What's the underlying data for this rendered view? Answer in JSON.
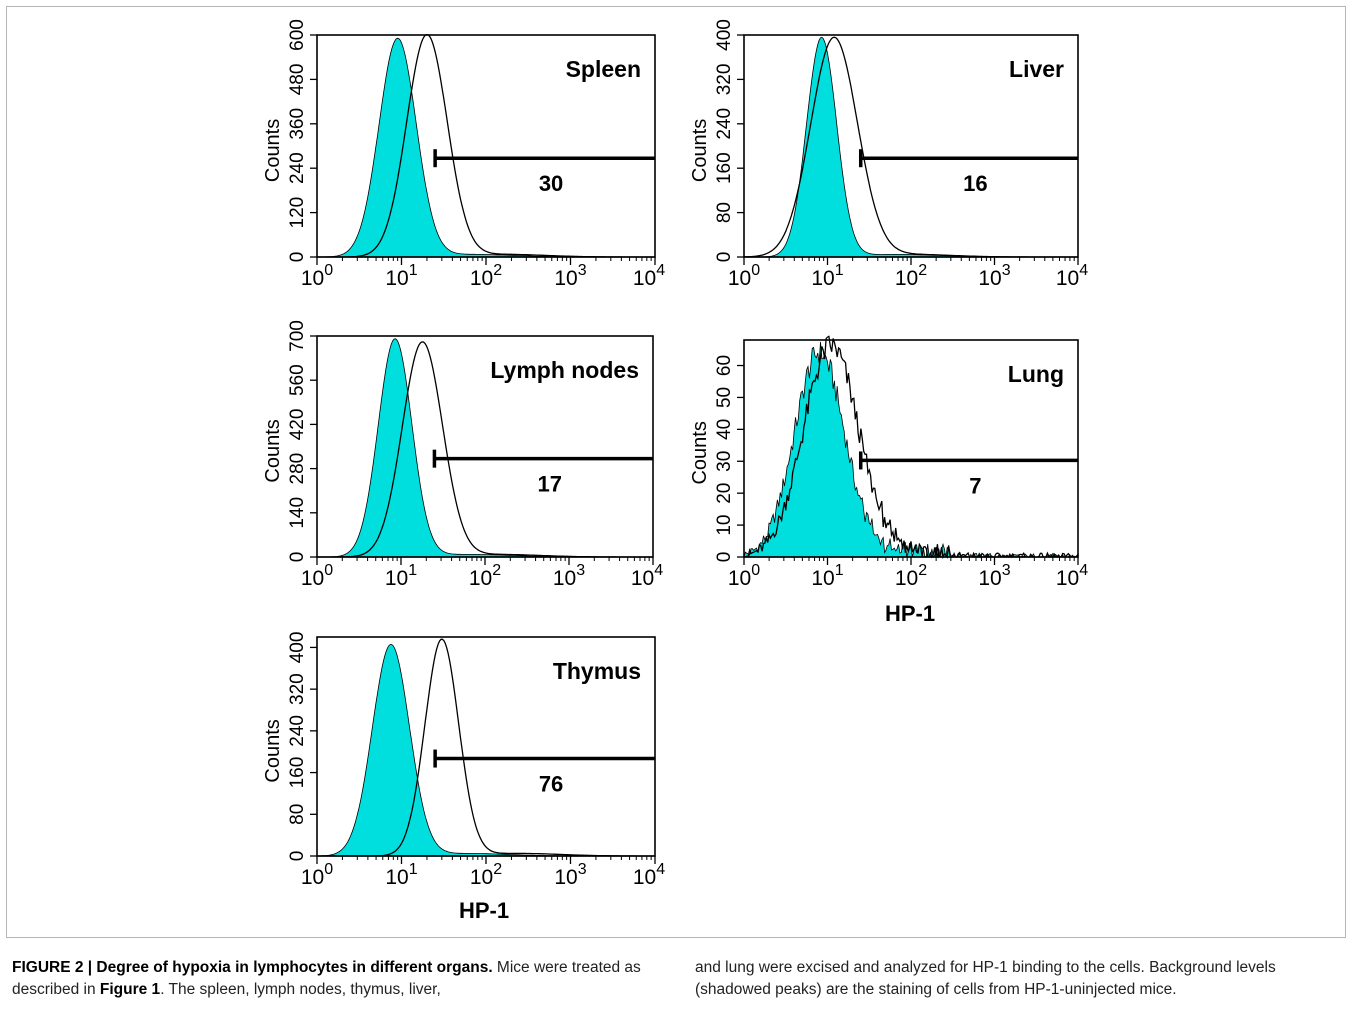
{
  "figure": {
    "shared_xlabel": "HP-1",
    "x_tick_labels": [
      {
        "base": "10",
        "exp": "0"
      },
      {
        "base": "10",
        "exp": "1"
      },
      {
        "base": "10",
        "exp": "2"
      },
      {
        "base": "10",
        "exp": "3"
      },
      {
        "base": "10",
        "exp": "4"
      }
    ]
  },
  "colors": {
    "background_fill": "#00dede",
    "stained_line": "#000000",
    "gate": "#000000",
    "caption_text": "#222222"
  },
  "chart_data": [
    {
      "type": "area",
      "title": "Spleen",
      "ylabel": "Counts",
      "xlabel": "",
      "xscale": "log",
      "xlim": [
        1,
        10000
      ],
      "ylim": [
        0,
        600
      ],
      "yticks": [
        0,
        120,
        240,
        360,
        480,
        600
      ],
      "grid": false,
      "gate": {
        "start": 25,
        "end": 10000,
        "label": "30"
      },
      "series": [
        {
          "style": "filled",
          "peak_x": 9,
          "peak_y": 590,
          "log_sd": 0.22
        },
        {
          "style": "outline",
          "peak_x": 20,
          "peak_y": 600,
          "log_sd": 0.24
        }
      ]
    },
    {
      "type": "area",
      "title": "Liver",
      "ylabel": "Counts",
      "xlabel": "",
      "xscale": "log",
      "xlim": [
        1,
        10000
      ],
      "ylim": [
        0,
        400
      ],
      "yticks": [
        0,
        80,
        160,
        240,
        320,
        400
      ],
      "grid": false,
      "gate": {
        "start": 25,
        "end": 10000,
        "label": "16"
      },
      "series": [
        {
          "style": "filled",
          "peak_x": 8.5,
          "peak_y": 395,
          "log_sd": 0.18
        },
        {
          "style": "outline",
          "peak_x": 12,
          "peak_y": 395,
          "log_sd": 0.28
        }
      ]
    },
    {
      "type": "area",
      "title": "Lymph nodes",
      "ylabel": "Counts",
      "xlabel": "",
      "xscale": "log",
      "xlim": [
        1,
        10000
      ],
      "ylim": [
        0,
        700
      ],
      "yticks": [
        0,
        140,
        280,
        420,
        560,
        700
      ],
      "grid": false,
      "gate": {
        "start": 25,
        "end": 10000,
        "label": "17"
      },
      "series": [
        {
          "style": "filled",
          "peak_x": 8.5,
          "peak_y": 690,
          "log_sd": 0.2
        },
        {
          "style": "outline",
          "peak_x": 18,
          "peak_y": 680,
          "log_sd": 0.24
        }
      ]
    },
    {
      "type": "area",
      "title": "Lung",
      "ylabel": "Counts",
      "xlabel": "HP-1",
      "xscale": "log",
      "xlim": [
        1,
        10000
      ],
      "ylim": [
        0,
        68
      ],
      "yticks": [
        0,
        10,
        20,
        30,
        40,
        50,
        60
      ],
      "grid": false,
      "gate": {
        "start": 25,
        "end": 10000,
        "label": "7"
      },
      "series": [
        {
          "style": "filled",
          "peak_x": 8,
          "peak_y": 64,
          "log_sd": 0.3
        },
        {
          "style": "outline",
          "peak_x": 11,
          "peak_y": 66,
          "log_sd": 0.33
        }
      ]
    },
    {
      "type": "area",
      "title": "Thymus",
      "ylabel": "Counts",
      "xlabel": "HP-1",
      "xscale": "log",
      "xlim": [
        1,
        10000
      ],
      "ylim": [
        0,
        420
      ],
      "yticks": [
        0,
        80,
        160,
        240,
        320,
        400
      ],
      "grid": false,
      "gate": {
        "start": 25,
        "end": 10000,
        "label": "76"
      },
      "series": [
        {
          "style": "filled",
          "peak_x": 7.5,
          "peak_y": 405,
          "log_sd": 0.22
        },
        {
          "style": "outline",
          "peak_x": 30,
          "peak_y": 415,
          "log_sd": 0.2
        }
      ]
    }
  ],
  "caption": {
    "heading": "FIGURE 2 | Degree of hypoxia in lymphocytes in different organs.",
    "part1": " Mice were treated as described in ",
    "figure_ref": "Figure 1",
    "part2": ". The spleen, lymph nodes, thymus, liver, and lung were excised and analyzed for HP-1 binding to the cells. Background levels (shadowed peaks) are the staining of cells from HP-1-uninjected mice."
  }
}
